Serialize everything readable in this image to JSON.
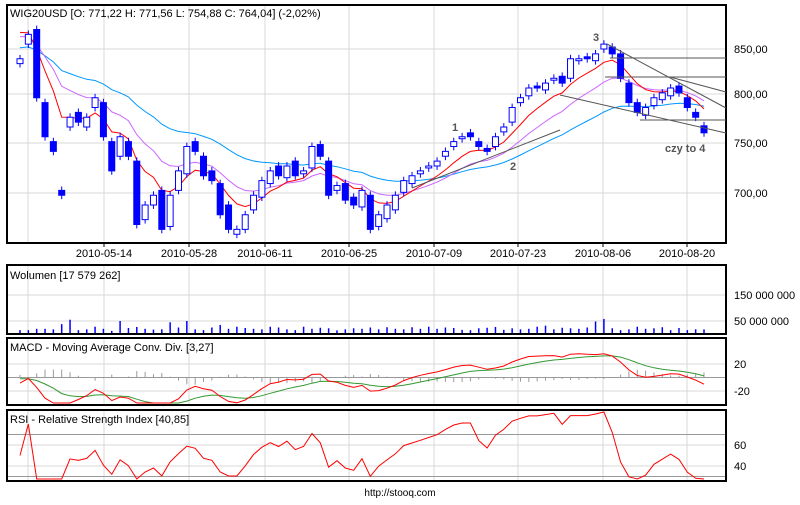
{
  "chart_data": [
    {
      "type": "candlestick",
      "title": "WIG20USD [O: 771,22  H: 771,56  L: 754,88  C: 764,04] (-2,02%)",
      "x_tick_labels": [
        "2010-05-14",
        "2010-05-28",
        "2010-06-11",
        "2010-06-25",
        "2010-07-09",
        "2010-07-23",
        "2010-08-06",
        "2010-08-20"
      ],
      "y_tick_labels": [
        "850,00",
        "800,00",
        "750,00",
        "700,00"
      ],
      "y_ticks": [
        850,
        800,
        750,
        700
      ],
      "ylim": [
        655,
        880
      ],
      "close": [
        840,
        865,
        800,
        760,
        745,
        700,
        780,
        775,
        780,
        800,
        760,
        725,
        760,
        740,
        670,
        690,
        700,
        665,
        700,
        725,
        750,
        745,
        720,
        715,
        680,
        665,
        665,
        680,
        700,
        715,
        725,
        720,
        730,
        720,
        725,
        750,
        740,
        700,
        710,
        695,
        690,
        705,
        665,
        680,
        690,
        700,
        715,
        720,
        725,
        730,
        735,
        745,
        755,
        760,
        760,
        750,
        745,
        760,
        770,
        790,
        800,
        810,
        810,
        815,
        820,
        815,
        840,
        840,
        840,
        845,
        855,
        845,
        820,
        795,
        785,
        790,
        800,
        805,
        810,
        805,
        790,
        780,
        764.04
      ],
      "open": [
        835,
        855,
        870,
        795,
        755,
        705,
        770,
        785,
        770,
        790,
        795,
        755,
        740,
        755,
        735,
        675,
        690,
        705,
        668,
        705,
        722,
        755,
        740,
        725,
        712,
        690,
        660,
        665,
        685,
        698,
        712,
        730,
        718,
        735,
        722,
        728,
        752,
        735,
        705,
        712,
        698,
        688,
        700,
        668,
        676,
        685,
        703,
        712,
        722,
        728,
        730,
        740,
        750,
        758,
        764,
        755,
        748,
        750,
        765,
        775,
        795,
        802,
        812,
        808,
        818,
        822,
        820,
        838,
        842,
        838,
        850,
        852,
        845,
        815,
        795,
        782,
        792,
        798,
        802,
        812,
        800,
        785,
        771.22
      ],
      "moving_averages": [
        "red",
        "violet",
        "blue"
      ],
      "annotations": [
        "1",
        "2",
        "3",
        "czy to 4"
      ]
    },
    {
      "type": "bar",
      "title": "Wolumen [17 579 262]",
      "y_tick_labels": [
        "150 000 000",
        "50 000 000"
      ],
      "y_ticks": [
        150,
        50
      ],
      "units": "millions",
      "values": [
        15,
        15,
        20,
        20,
        18,
        38,
        55,
        15,
        18,
        28,
        20,
        12,
        50,
        23,
        27,
        20,
        17,
        18,
        45,
        25,
        50,
        18,
        15,
        25,
        35,
        20,
        28,
        23,
        20,
        18,
        28,
        25,
        18,
        15,
        28,
        20,
        24,
        22,
        14,
        18,
        22,
        20,
        25,
        18,
        26,
        20,
        18,
        26,
        20,
        28,
        20,
        25,
        23,
        16,
        15,
        22,
        24,
        27,
        16,
        22,
        18,
        20,
        28,
        32,
        18,
        24,
        22,
        20,
        25,
        48,
        58,
        22,
        15,
        18,
        28,
        20,
        22,
        26,
        15,
        23,
        15,
        18,
        17.58
      ]
    },
    {
      "type": "line",
      "title": "MACD - Moving Average Conv. Div. [3,27]",
      "y_tick_labels": [
        "20",
        "-20"
      ],
      "y_ticks": [
        20,
        -20
      ],
      "series": [
        "macd",
        "signal",
        "histogram"
      ]
    },
    {
      "type": "line",
      "title": "RSI - Relative Strength Index [40,85]",
      "y_tick_labels": [
        "60",
        "40"
      ],
      "y_ticks": [
        60,
        40
      ],
      "levels": [
        70,
        30
      ]
    }
  ],
  "footer": "http://stooq.com",
  "colors": {
    "up": "#0000ff",
    "down": "#0000ff",
    "ma1": "#ff0000",
    "ma2": "#cc66ff",
    "ma3": "#0099ff",
    "macd": "#ff0000",
    "signal": "#339933",
    "hist": "#999999",
    "rsi": "#ff0000",
    "trend": "#555555"
  }
}
